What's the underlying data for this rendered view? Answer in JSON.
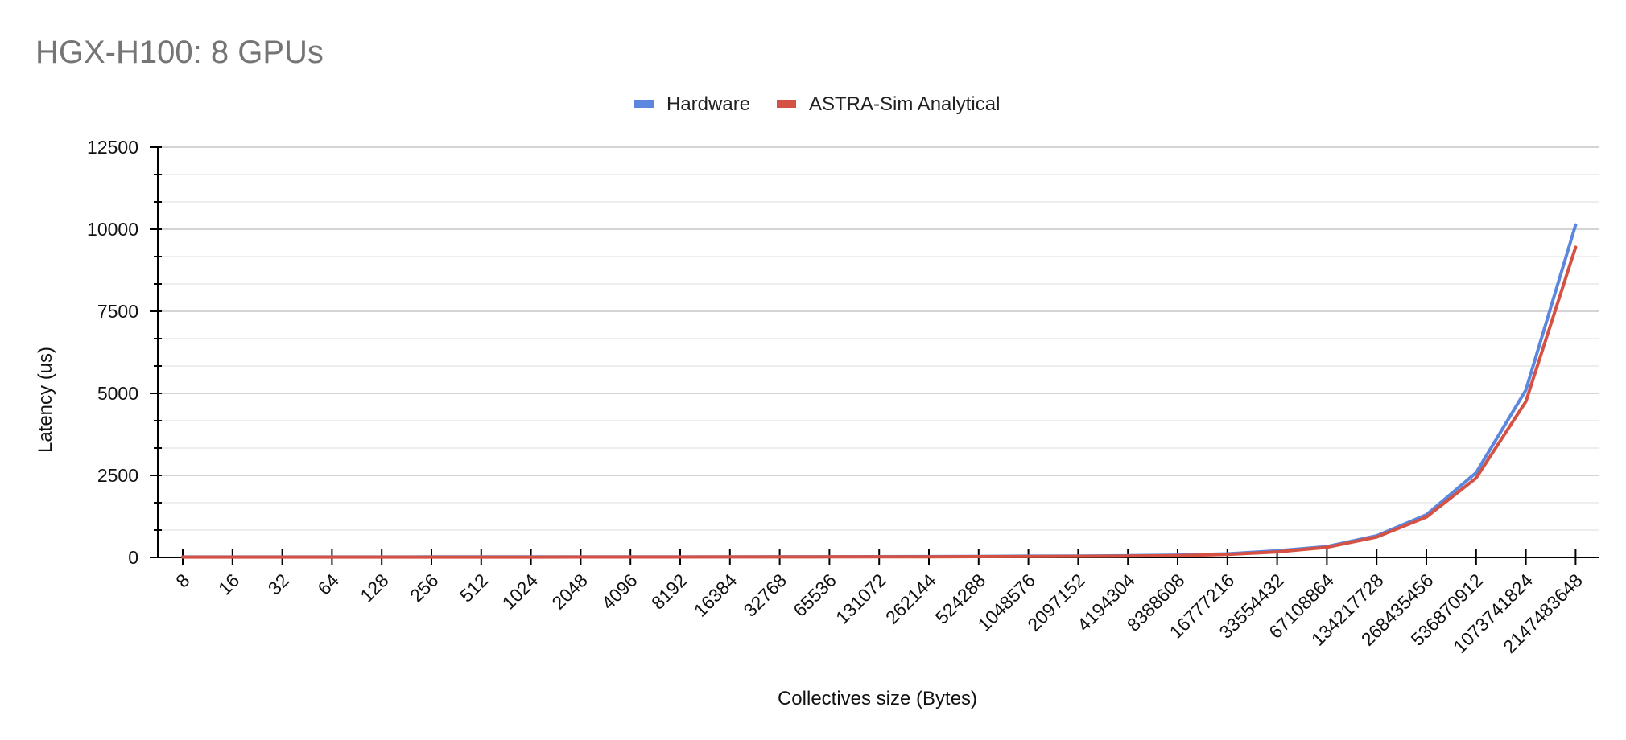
{
  "chart_data": {
    "type": "line",
    "title": "HGX-H100: 8 GPUs",
    "xlabel": "Collectives size (Bytes)",
    "ylabel": "Latency (us)",
    "ylim": [
      0,
      12500
    ],
    "yticks": [
      0,
      2500,
      5000,
      7500,
      10000,
      12500
    ],
    "grid": true,
    "legend_position": "top-center",
    "categories": [
      "8",
      "16",
      "32",
      "64",
      "128",
      "256",
      "512",
      "1024",
      "2048",
      "4096",
      "8192",
      "16384",
      "32768",
      "65536",
      "131072",
      "262144",
      "524288",
      "1048576",
      "2097152",
      "4194304",
      "8388608",
      "16777216",
      "33554432",
      "67108864",
      "134217728",
      "268435456",
      "536870912",
      "1073741824",
      "2147483648"
    ],
    "series": [
      {
        "name": "Hardware",
        "color": "#5b87de",
        "values": [
          15,
          15,
          15,
          15,
          15,
          16,
          16,
          17,
          17,
          18,
          19,
          20,
          21,
          23,
          25,
          28,
          32,
          38,
          45,
          55,
          70,
          110,
          200,
          330,
          660,
          1300,
          2580,
          5100,
          10130
        ]
      },
      {
        "name": "ASTRA-Sim Analytical",
        "color": "#d55143",
        "values": [
          10,
          10,
          10,
          10,
          10,
          11,
          11,
          11,
          12,
          12,
          13,
          14,
          15,
          16,
          18,
          20,
          24,
          28,
          34,
          42,
          55,
          90,
          170,
          310,
          620,
          1230,
          2420,
          4750,
          9450
        ]
      }
    ]
  }
}
